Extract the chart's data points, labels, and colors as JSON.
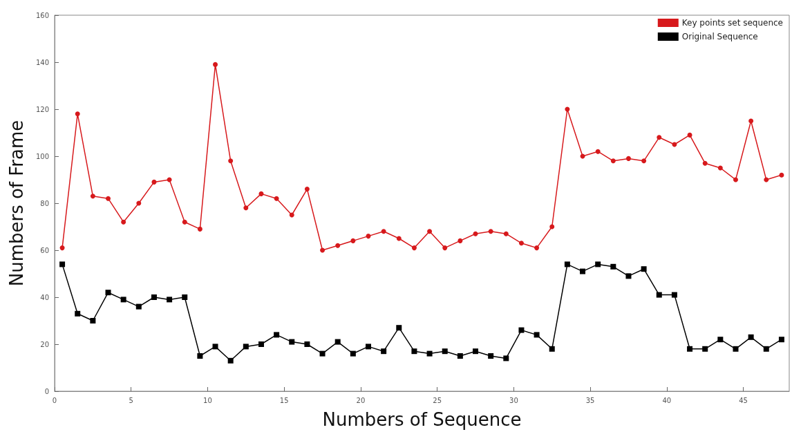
{
  "chart_data": {
    "type": "line",
    "xlabel": "Numbers of Sequence",
    "ylabel": "Numbers of Frame",
    "x": [
      0.5,
      1.5,
      2.5,
      3.5,
      4.5,
      5.5,
      6.5,
      7.5,
      8.5,
      9.5,
      10.5,
      11.5,
      12.5,
      13.5,
      14.5,
      15.5,
      16.5,
      17.5,
      18.5,
      19.5,
      20.5,
      21.5,
      22.5,
      23.5,
      24.5,
      25.5,
      26.5,
      27.5,
      28.5,
      29.5,
      30.5,
      31.5,
      32.5,
      33.5,
      34.5,
      35.5,
      36.5,
      37.5,
      38.5,
      39.5,
      40.5,
      41.5,
      42.5,
      43.5,
      44.5,
      45.5,
      46.5,
      47.5
    ],
    "series": [
      {
        "name": "Key points set sequence",
        "color": "#d7191c",
        "marker": "circle",
        "values": [
          61,
          118,
          83,
          82,
          72,
          80,
          89,
          90,
          72,
          69,
          139,
          98,
          78,
          84,
          82,
          75,
          86,
          60,
          62,
          64,
          66,
          68,
          65,
          61,
          68,
          61,
          64,
          67,
          68,
          67,
          63,
          61,
          70,
          120,
          100,
          102,
          98,
          99,
          98,
          108,
          105,
          109,
          97,
          95,
          90,
          115,
          90,
          92
        ]
      },
      {
        "name": "Original Sequence",
        "color": "#000000",
        "marker": "square",
        "values": [
          54,
          33,
          30,
          42,
          39,
          36,
          40,
          39,
          40,
          15,
          19,
          13,
          19,
          20,
          24,
          21,
          20,
          16,
          21,
          16,
          19,
          17,
          27,
          17,
          16,
          17,
          15,
          17,
          15,
          14,
          26,
          24,
          18,
          54,
          51,
          54,
          53,
          49,
          52,
          41,
          41,
          18,
          18,
          22,
          18,
          23,
          18,
          22
        ]
      }
    ],
    "xlim": [
      0,
      48
    ],
    "xticks": [
      0,
      5,
      10,
      15,
      20,
      25,
      30,
      35,
      40,
      45
    ],
    "ylim": [
      0,
      160
    ],
    "yticks": [
      0,
      20,
      40,
      60,
      80,
      100,
      120,
      140,
      160
    ],
    "grid": false,
    "legend": "top right",
    "line_style": "solid"
  }
}
